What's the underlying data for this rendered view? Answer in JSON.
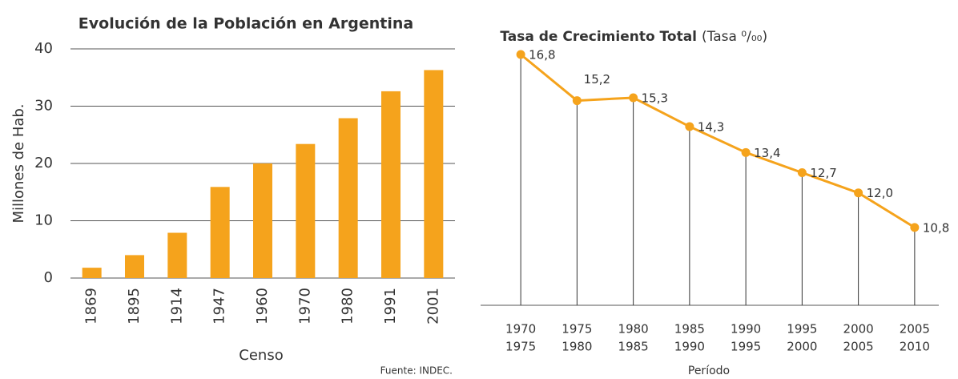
{
  "chart_data": [
    {
      "type": "bar",
      "title": "Evolución de la Población en Argentina",
      "y_label": "Millones de Hab.",
      "x_label": "Censo",
      "source": "Fuente: INDEC.",
      "categories": [
        "1869",
        "1895",
        "1914",
        "1947",
        "1960",
        "1970",
        "1980",
        "1991",
        "2001"
      ],
      "values": [
        1.8,
        4.0,
        7.9,
        15.9,
        20.0,
        23.4,
        27.9,
        32.6,
        36.3
      ],
      "color": "#f5a31c",
      "ylim": [
        0,
        40
      ],
      "yticks": [
        0,
        10,
        20,
        30,
        40
      ],
      "grid": true
    },
    {
      "type": "line",
      "title": "Tasa de Crecimiento Total",
      "title_unit": "(Tasa ⁰/₀₀)",
      "x_label": "Período",
      "categories": [
        [
          "1970",
          "1975"
        ],
        [
          "1975",
          "1980"
        ],
        [
          "1980",
          "1985"
        ],
        [
          "1985",
          "1990"
        ],
        [
          "1990",
          "1995"
        ],
        [
          "1995",
          "2000"
        ],
        [
          "2000",
          "2005"
        ],
        [
          "2005",
          "2010"
        ]
      ],
      "values": [
        16.8,
        15.2,
        15.3,
        14.3,
        13.4,
        12.7,
        12.0,
        10.8
      ],
      "value_labels": [
        "16,8",
        "15,2",
        "15,3",
        "14,3",
        "13,4",
        "12,7",
        "12,0",
        "10,8"
      ],
      "color": "#f5a31c"
    }
  ]
}
